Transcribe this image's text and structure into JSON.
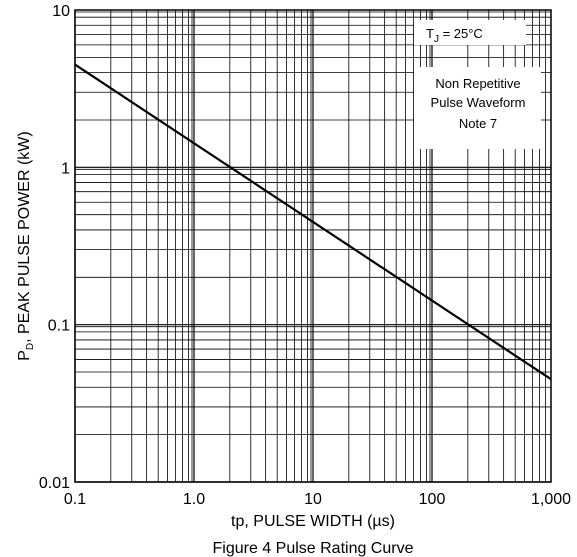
{
  "chart_data": {
    "type": "line",
    "x_scale": "log",
    "y_scale": "log",
    "xlim": [
      0.1,
      1000
    ],
    "ylim": [
      0.01,
      10
    ],
    "x_tick_labels": [
      "0.1",
      "1.0",
      "10",
      "100",
      "1,000"
    ],
    "y_tick_labels": [
      "0.01",
      "0.1",
      "1",
      "10"
    ],
    "xlabel": "tp, PULSE WIDTH (µs)",
    "ylabel_prefix": "P",
    "ylabel_subscript": "D",
    "ylabel_suffix": ", PEAK PULSE POWER (kW)",
    "caption": "Figure 4  Pulse Rating Curve",
    "grid": true,
    "series": [
      {
        "x": [
          0.1,
          1000
        ],
        "y": [
          4.5,
          0.045
        ]
      }
    ],
    "annotations": {
      "temp_prefix": "T",
      "temp_subscript": "J",
      "temp_suffix": " = 25°C",
      "note_lines": [
        "Non Repetitive",
        "Pulse Waveform",
        "Note 7"
      ]
    }
  }
}
